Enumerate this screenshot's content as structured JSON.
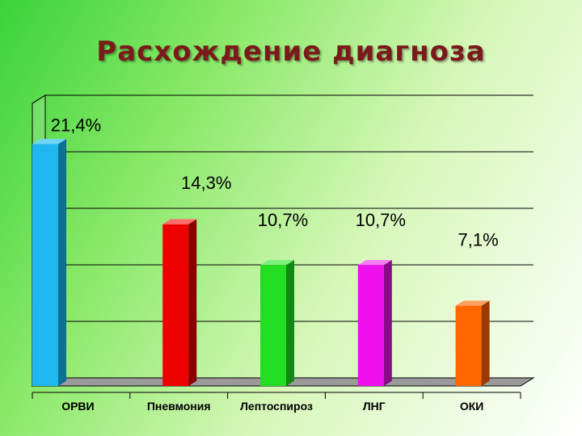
{
  "title": "Расхождение диагноза",
  "chart_data": {
    "type": "bar",
    "title": "",
    "categories": [
      "ОРВИ",
      "Пневмония",
      "Лептоспироз",
      "ЛНГ",
      "ОКИ"
    ],
    "values": [
      21.4,
      14.3,
      10.7,
      10.7,
      7.1
    ],
    "data_labels": [
      "21,4%",
      "14,3%",
      "10,7%",
      "10,7%",
      "7,1%"
    ],
    "ylim": [
      0,
      25
    ],
    "grid": true,
    "colors": [
      "#1fb7ef",
      "#ee0000",
      "#22dd22",
      "#ee11ee",
      "#ff6600"
    ],
    "side_colors": [
      "#0d6f93",
      "#8a0000",
      "#118811",
      "#8a0a8a",
      "#9a3a00"
    ],
    "top_colors": [
      "#6fd6f9",
      "#ff6a6a",
      "#7df07d",
      "#f77df7",
      "#ffa060"
    ]
  }
}
